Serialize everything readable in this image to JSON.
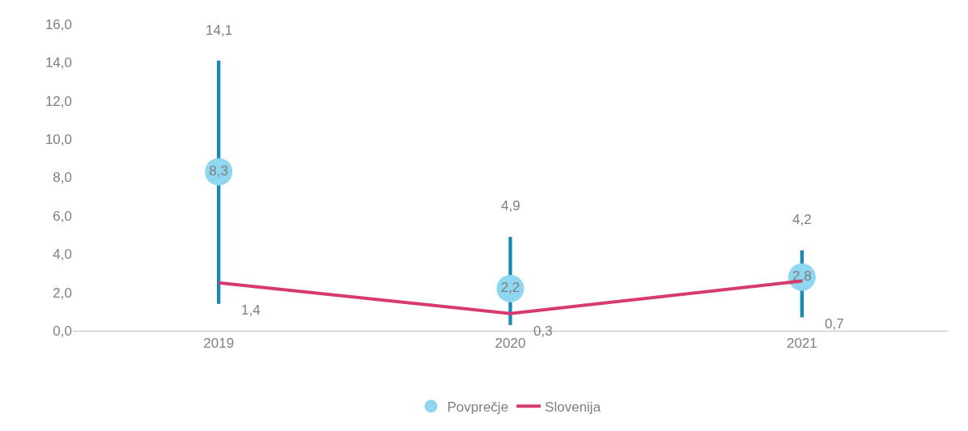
{
  "chart_data": {
    "type": "scatter",
    "categories": [
      "2019",
      "2020",
      "2021"
    ],
    "series": [
      {
        "type": "bar",
        "color": "#1a87b8",
        "base": [
          1.4,
          0.3,
          0.7
        ],
        "values": [
          12.7,
          4.6,
          3.5
        ]
      },
      {
        "name": "Povprečje",
        "color": "#8fd6f0",
        "values": [
          8.3,
          2.2,
          2.8
        ],
        "value_labels": [
          "8,3",
          "2,2",
          "2,8"
        ],
        "marker": "circle"
      },
      {
        "name": "Slovenija",
        "type": "line",
        "color": "#d63a6e",
        "values": [
          2.5,
          0.9,
          2.6
        ],
        "marker": "none"
      }
    ],
    "annotations": [
      {
        "text": "14,1",
        "x": "2019",
        "y": 14.1
      },
      {
        "text": "1,4",
        "x": "2019",
        "y": 1.4
      },
      {
        "text": "4,9",
        "x": "2020",
        "y": 4.9
      },
      {
        "text": "0,3",
        "x": "2020",
        "y": 0.3
      },
      {
        "text": "4,2",
        "x": "2021",
        "y": 4.2
      },
      {
        "text": "0,7",
        "x": "2021",
        "y": 0.7
      }
    ],
    "ylim": [
      0,
      16
    ],
    "yticks": [
      {
        "value": 0,
        "label": "0,0"
      },
      {
        "value": 2,
        "label": "2,0"
      },
      {
        "value": 4,
        "label": "4,0"
      },
      {
        "value": 6,
        "label": "6,0"
      },
      {
        "value": 8,
        "label": "8,0"
      },
      {
        "value": 10,
        "label": "10,0"
      },
      {
        "value": 12,
        "label": "12,0"
      },
      {
        "value": 14,
        "label": "14,0"
      },
      {
        "value": 16,
        "label": "16,0"
      }
    ],
    "legend": "bottom"
  }
}
